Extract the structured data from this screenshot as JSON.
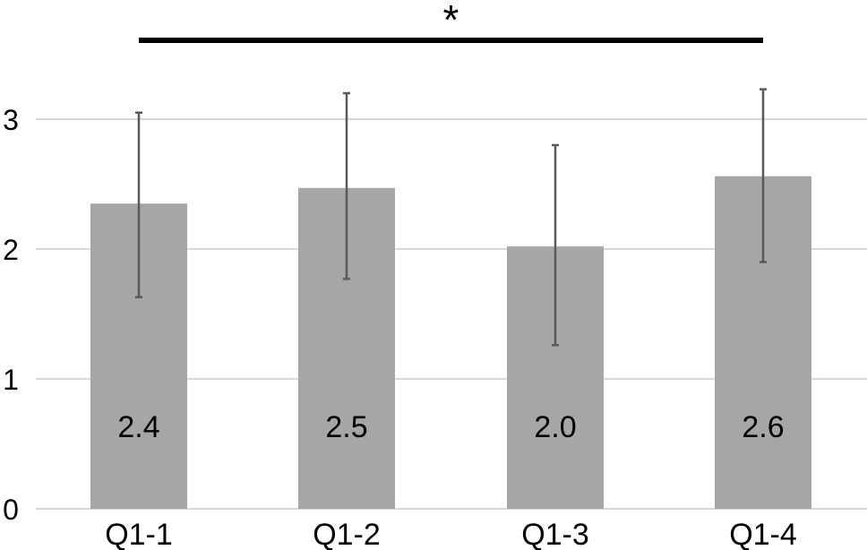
{
  "chart_data": {
    "type": "bar",
    "categories": [
      "Q1-1",
      "Q1-2",
      "Q1-3",
      "Q1-4"
    ],
    "values": [
      2.35,
      2.47,
      2.02,
      2.56
    ],
    "value_labels": [
      "2.4",
      "2.5",
      "2.0",
      "2.6"
    ],
    "error_low": [
      1.63,
      1.77,
      1.26,
      1.9
    ],
    "error_high": [
      3.05,
      3.2,
      2.8,
      3.23
    ],
    "yticks": [
      "0",
      "1",
      "2",
      "3"
    ],
    "ylim": [
      0,
      3.4
    ],
    "grid": true,
    "significance": {
      "from": "Q1-1",
      "to": "Q1-4",
      "marker": "*"
    },
    "colors": {
      "bar": "#a6a6a6",
      "error_bar": "#595959",
      "grid": "#d9d9d9",
      "bracket": "#000000",
      "text": "#000000"
    }
  }
}
